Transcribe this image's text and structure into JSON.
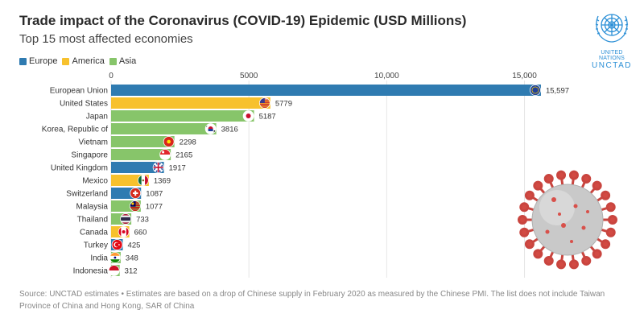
{
  "header": {
    "title": "Trade impact of the Coronavirus (COVID-19) Epidemic (USD Millions)",
    "subtitle": "Top 15 most affected economies"
  },
  "legend": [
    {
      "label": "Europe",
      "color": "#2f7bb1"
    },
    {
      "label": "America",
      "color": "#f7c12d"
    },
    {
      "label": "Asia",
      "color": "#87c56a"
    }
  ],
  "logo": {
    "org": "UNITED NATIONS",
    "name": "UNCTAD"
  },
  "chart_data": {
    "type": "bar",
    "orientation": "horizontal",
    "title": "Trade impact of the Coronavirus (COVID-19) Epidemic (USD Millions)",
    "subtitle": "Top 15 most affected economies",
    "xlim": [
      0,
      17000
    ],
    "x_ticks": [
      0,
      5000,
      10000,
      15000
    ],
    "x_tick_labels": [
      "0",
      "5000",
      "10,000",
      "15,000"
    ],
    "categories": [
      "European Union",
      "United States",
      "Japan",
      "Korea, Republic of",
      "Vietnam",
      "Singapore",
      "United Kingdom",
      "Mexico",
      "Switzerland",
      "Malaysia",
      "Thailand",
      "Canada",
      "Turkey",
      "India",
      "Indonesia"
    ],
    "values": [
      15597,
      5779,
      5187,
      3816,
      2298,
      2165,
      1917,
      1369,
      1087,
      1077,
      733,
      660,
      425,
      348,
      312
    ],
    "value_labels": [
      "15,597",
      "5779",
      "5187",
      "3816",
      "2298",
      "2165",
      "1917",
      "1369",
      "1087",
      "1077",
      "733",
      "660",
      "425",
      "348",
      "312"
    ],
    "regions": [
      "Europe",
      "America",
      "Asia",
      "Asia",
      "Asia",
      "Asia",
      "Europe",
      "America",
      "Europe",
      "Asia",
      "Asia",
      "America",
      "Europe",
      "Asia",
      "Asia"
    ],
    "flags": [
      "eu-flag-icon",
      "us-flag-icon",
      "japan-flag-icon",
      "korea-flag-icon",
      "vietnam-flag-icon",
      "singapore-flag-icon",
      "uk-flag-icon",
      "mexico-flag-icon",
      "switzerland-flag-icon",
      "malaysia-flag-icon",
      "thailand-flag-icon",
      "canada-flag-icon",
      "turkey-flag-icon",
      "india-flag-icon",
      "indonesia-flag-icon"
    ]
  },
  "source": "Source: UNCTAD estimates • Estimates are based on a drop of Chinese supply in February 2020 as measured by the Chinese PMI. The list does not include Taiwan Province of China and Hong Kong, SAR of China"
}
